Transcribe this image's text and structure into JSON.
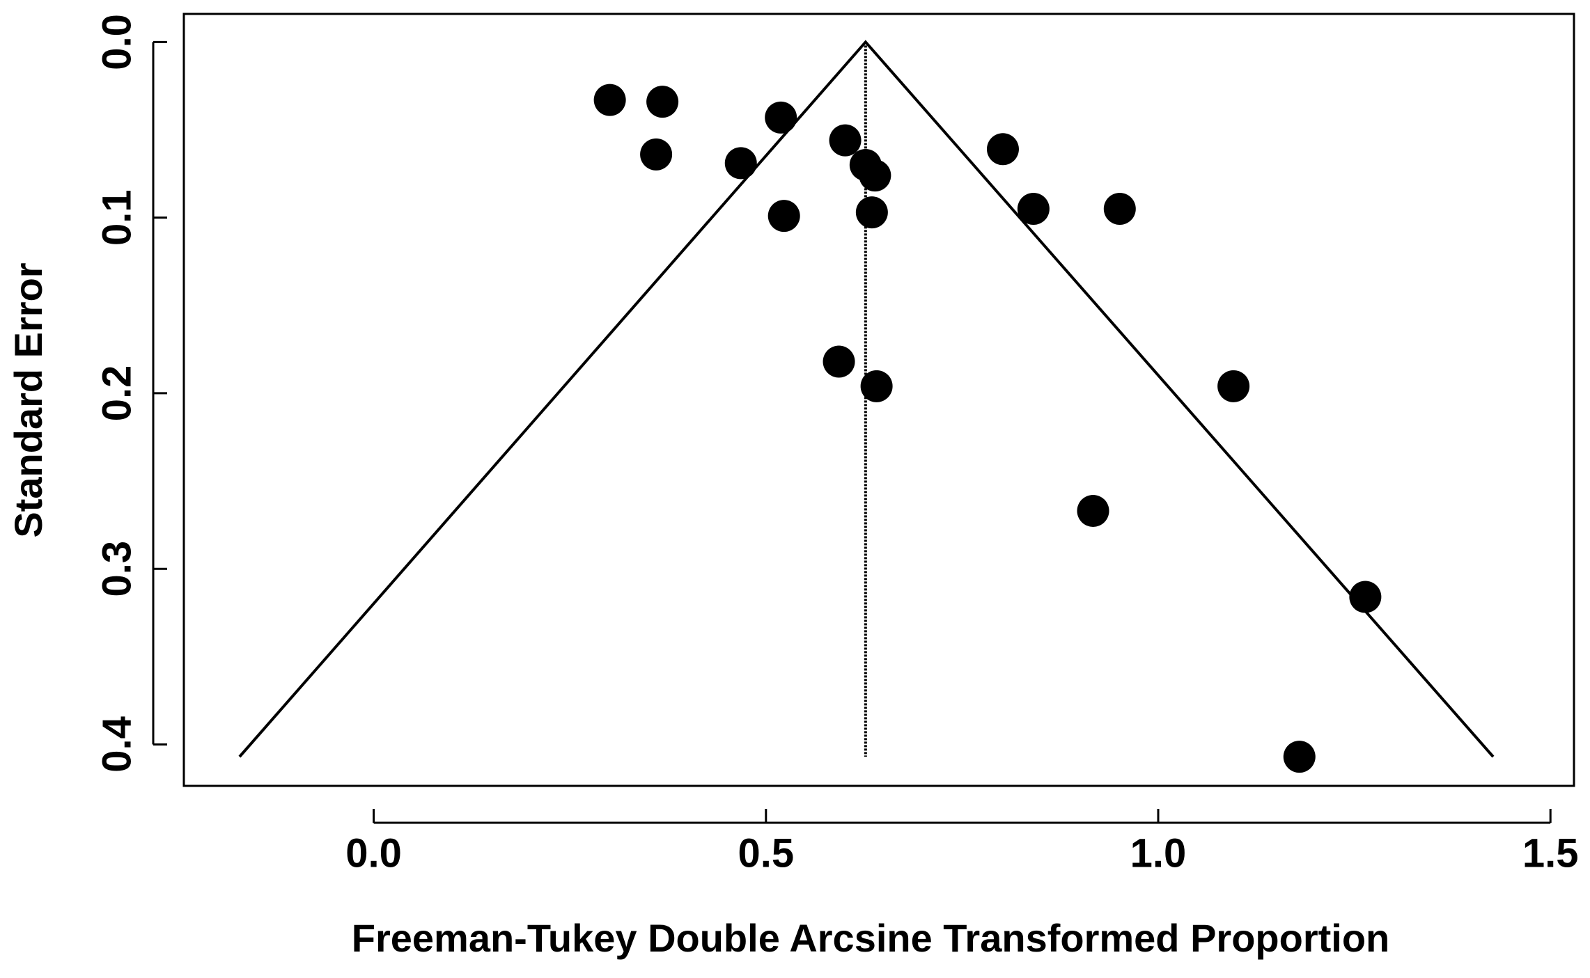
{
  "chart_data": {
    "type": "funnel",
    "x_label": "Freeman-Tukey Double Arcsine Transformed Proportion",
    "y_label": "Standard Error",
    "x": [
      0.301,
      0.368,
      0.36,
      0.519,
      0.468,
      0.523,
      0.601,
      0.627,
      0.639,
      0.635,
      0.593,
      0.641,
      0.802,
      0.841,
      0.951,
      1.096,
      0.917,
      1.264,
      1.18
    ],
    "values": [
      0.033,
      0.034,
      0.064,
      0.043,
      0.069,
      0.099,
      0.056,
      0.07,
      0.076,
      0.097,
      0.182,
      0.196,
      0.061,
      0.095,
      0.095,
      0.196,
      0.267,
      0.316,
      0.407
    ],
    "color": "#000000",
    "funnel": {
      "x": [
        -0.171,
        0.627,
        1.427
      ],
      "y": [
        0.407,
        0,
        0.407
      ]
    },
    "center_line": {
      "x": [
        0.627,
        0.627
      ],
      "y": [
        0,
        0.407
      ]
    },
    "xlim": [
      -0.242,
      1.53
    ],
    "ylim": [
      -0.016,
      0.4236
    ],
    "y_reversed": true,
    "xticks": [
      {
        "value": 0,
        "label": "0.0"
      },
      0.5,
      {
        "value": 1,
        "label": "1.0"
      },
      1.5
    ],
    "yticks": [
      {
        "value": 0,
        "label": "0.0"
      },
      0.1,
      0.2,
      0.3,
      0.4
    ]
  }
}
